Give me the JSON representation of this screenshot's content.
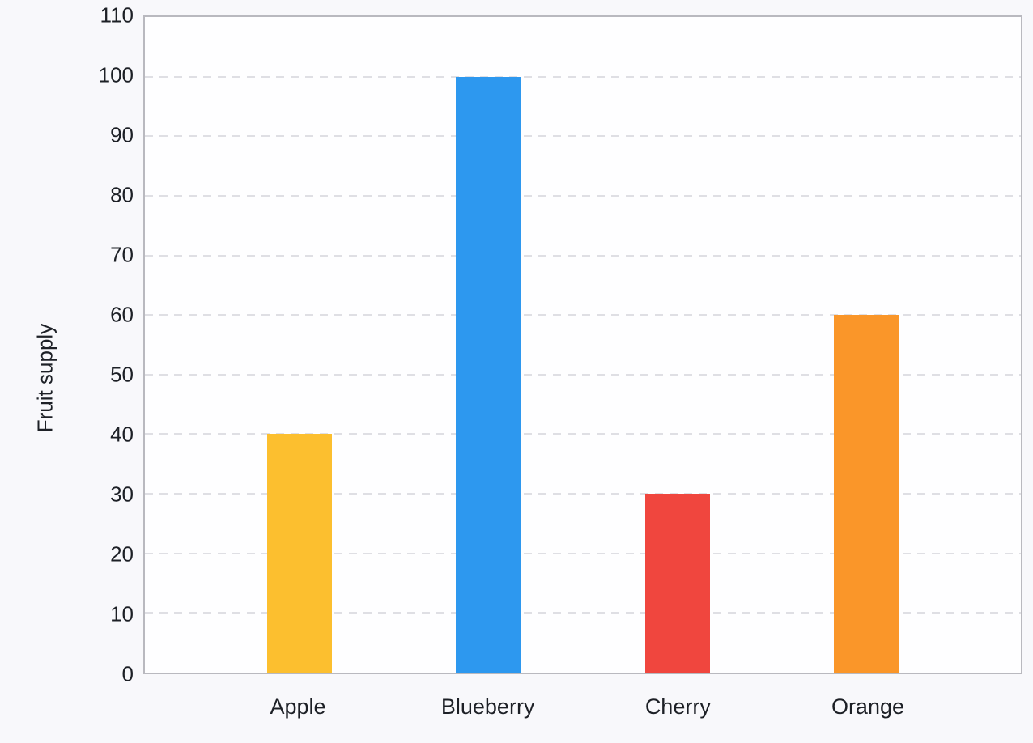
{
  "chart_data": {
    "type": "bar",
    "title": "",
    "xlabel": "",
    "ylabel": "Fruit supply",
    "categories": [
      "Apple",
      "Blueberry",
      "Cherry",
      "Orange"
    ],
    "values": [
      40,
      100,
      30,
      60
    ],
    "bar_colors": [
      "#fcbf2f",
      "#2d98ef",
      "#f0463e",
      "#fa9629"
    ],
    "ylim": [
      0,
      110
    ],
    "yticks": [
      0,
      10,
      20,
      30,
      40,
      50,
      60,
      70,
      80,
      90,
      100,
      110
    ],
    "grid": "horizontal-dashed",
    "legend_position": "none"
  },
  "colors": {
    "background": "#f8f8fb",
    "plot_background": "#fefeff",
    "plot_border": "#b9b9bf",
    "gridline": "#dfdfe4",
    "text": "#1d2026"
  }
}
